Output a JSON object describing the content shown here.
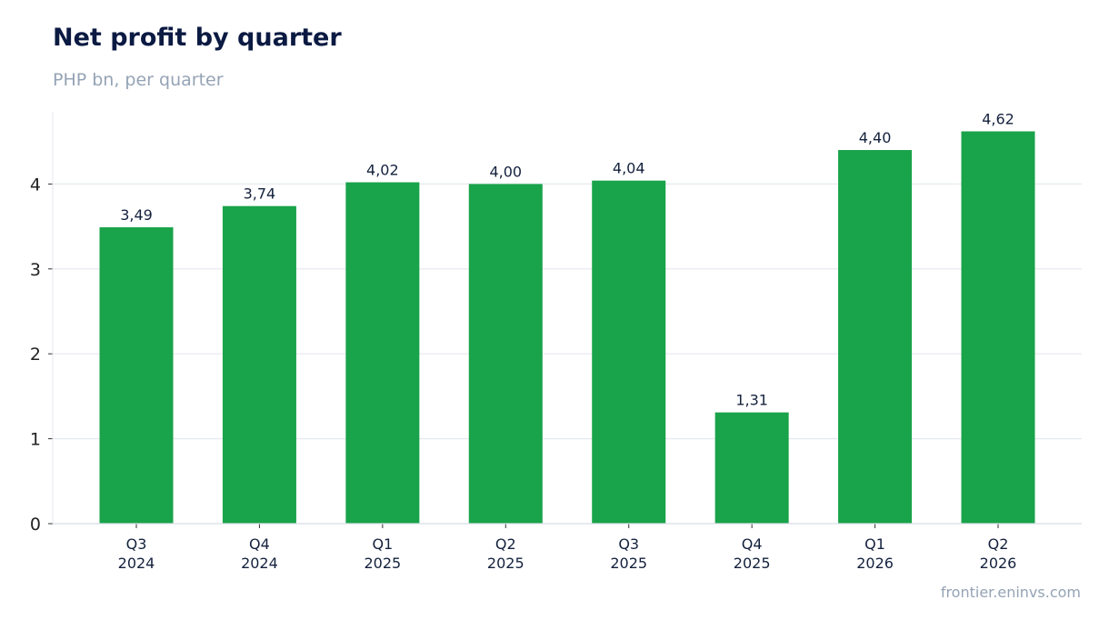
{
  "chart_data": {
    "type": "bar",
    "title": "Net profit by quarter",
    "subtitle": "PHP bn, per quarter",
    "categories": [
      [
        "Q3",
        "2024"
      ],
      [
        "Q4",
        "2024"
      ],
      [
        "Q1",
        "2025"
      ],
      [
        "Q2",
        "2025"
      ],
      [
        "Q3",
        "2025"
      ],
      [
        "Q4",
        "2025"
      ],
      [
        "Q1",
        "2026"
      ],
      [
        "Q2",
        "2026"
      ]
    ],
    "values": [
      3.49,
      3.74,
      4.02,
      4.0,
      4.04,
      1.31,
      4.4,
      4.62
    ],
    "value_labels": [
      "3,49",
      "3,74",
      "4,02",
      "4,00",
      "4,04",
      "1,31",
      "4,40",
      "4,62"
    ],
    "yticks": [
      0,
      1,
      2,
      3,
      4
    ],
    "ylim": [
      0,
      4.85
    ],
    "grid": true,
    "xlabel": "",
    "ylabel": "",
    "bar_color": "#19a34a",
    "source": "frontier.eninvs.com"
  }
}
